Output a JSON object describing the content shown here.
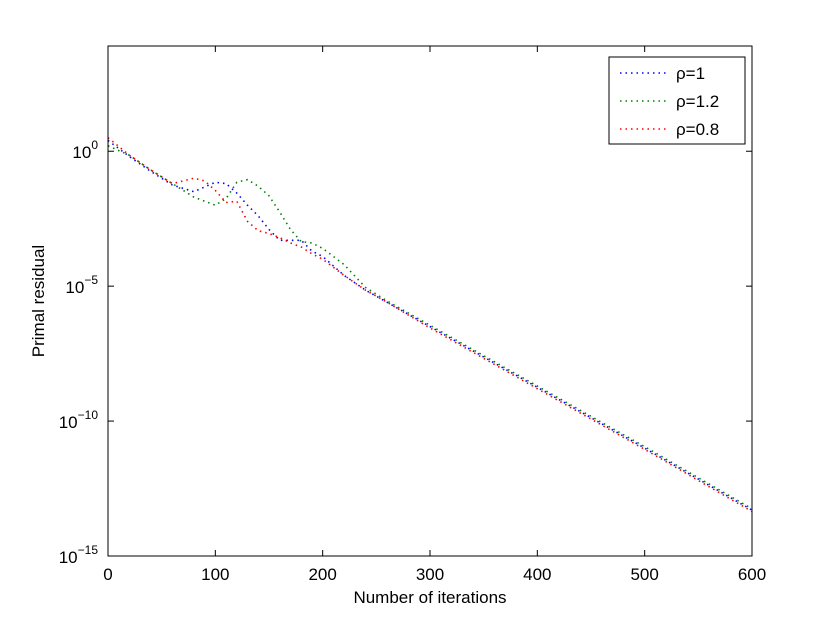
{
  "chart_data": {
    "type": "line",
    "title": "",
    "xlabel": "Number of iterations",
    "ylabel": "Primal residual",
    "xlim": [
      0,
      600
    ],
    "ylim_log10": [
      -15,
      3.9
    ],
    "yscale": "log",
    "grid": false,
    "legend_position": "top-right",
    "x_ticks": [
      0,
      100,
      200,
      300,
      400,
      500,
      600
    ],
    "x_tick_labels": [
      "0",
      "100",
      "200",
      "300",
      "400",
      "500",
      "600"
    ],
    "y_ticks_log10": [
      0,
      -5,
      -10,
      -15
    ],
    "y_tick_labels": [
      {
        "base": "10",
        "exp": "0"
      },
      {
        "base": "10",
        "exp": "−5"
      },
      {
        "base": "10",
        "exp": "−10"
      },
      {
        "base": "10",
        "exp": "−15"
      }
    ],
    "series": [
      {
        "name": "ρ=1",
        "color": "#0000ff",
        "x": [
          0,
          20,
          40,
          60,
          80,
          100,
          110,
          120,
          130,
          140,
          150,
          160,
          170,
          180,
          190,
          200,
          220,
          240,
          260,
          300,
          400,
          500,
          600
        ],
        "log10y": [
          0.4,
          -0.2,
          -0.75,
          -1.25,
          -1.5,
          -1.15,
          -1.2,
          -1.55,
          -2.0,
          -2.4,
          -2.9,
          -3.3,
          -3.3,
          -3.3,
          -3.7,
          -3.9,
          -4.6,
          -5.15,
          -5.6,
          -6.5,
          -8.75,
          -11.0,
          -13.3
        ]
      },
      {
        "name": "ρ=1.2",
        "color": "#008000",
        "x": [
          0,
          20,
          40,
          60,
          80,
          90,
          100,
          110,
          120,
          130,
          140,
          150,
          160,
          170,
          180,
          190,
          200,
          220,
          240,
          260,
          300,
          400,
          500,
          600
        ],
        "log10y": [
          0.2,
          -0.15,
          -0.7,
          -1.2,
          -1.7,
          -1.85,
          -2.0,
          -1.75,
          -1.15,
          -1.05,
          -1.3,
          -1.65,
          -2.25,
          -2.9,
          -3.35,
          -3.4,
          -3.6,
          -4.2,
          -5.05,
          -5.55,
          -6.45,
          -8.7,
          -10.95,
          -13.25
        ]
      },
      {
        "name": "ρ=0.8",
        "color": "#ff0000",
        "x": [
          0,
          20,
          40,
          60,
          80,
          90,
          100,
          110,
          120,
          130,
          140,
          150,
          160,
          170,
          180,
          190,
          200,
          220,
          240,
          260,
          300,
          400,
          500,
          600
        ],
        "log10y": [
          0.5,
          -0.15,
          -0.7,
          -1.2,
          -1.0,
          -1.1,
          -1.45,
          -1.9,
          -1.85,
          -2.6,
          -2.95,
          -3.05,
          -3.2,
          -3.4,
          -3.55,
          -3.8,
          -4.0,
          -4.6,
          -5.15,
          -5.6,
          -6.55,
          -8.8,
          -11.05,
          -13.35
        ]
      }
    ]
  }
}
